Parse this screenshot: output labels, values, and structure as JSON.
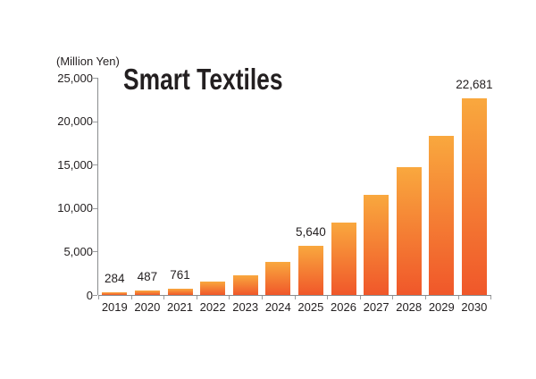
{
  "chart_data": {
    "type": "bar",
    "title": "Smart Textiles",
    "unit_label": "(Million Yen)",
    "categories": [
      "2019",
      "2020",
      "2021",
      "2022",
      "2023",
      "2024",
      "2025",
      "2026",
      "2027",
      "2028",
      "2029",
      "2030"
    ],
    "values": [
      284,
      487,
      761,
      1500,
      2230,
      3780,
      5640,
      8330,
      11520,
      14710,
      18340,
      22681
    ],
    "bar_labels": [
      "284",
      "487",
      "761",
      "",
      "",
      "",
      "5,640",
      "",
      "",
      "",
      "",
      "22,681"
    ],
    "ylim": [
      0,
      25000
    ],
    "ytick_interval": 5000,
    "ytick_labels": [
      "0",
      "5,000",
      "10,000",
      "15,000",
      "20,000",
      "25,000"
    ],
    "grid": false,
    "legend": false,
    "bar_gradient_top": "#F9A83E",
    "bar_gradient_bottom": "#F0572A",
    "axis_color": "#8a8c8e",
    "text_color": "#231f20"
  }
}
